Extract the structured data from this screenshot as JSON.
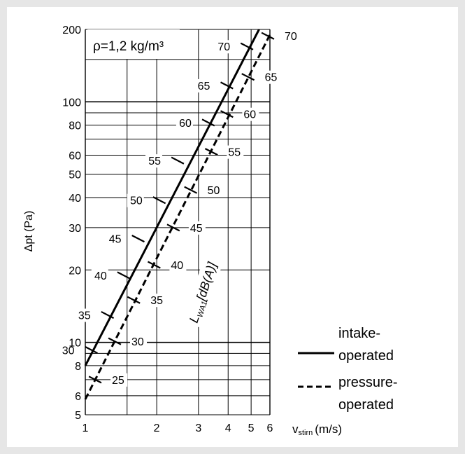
{
  "chart_data": {
    "type": "line",
    "annotation": "ρ=1,2 kg/m³",
    "xlabel": "v",
    "xlabel_sub": "stirn",
    "xlabel_unit": "(m/s)",
    "ylabel": "Δpt (Pa)",
    "scale": "log-log",
    "xlim": [
      1,
      6
    ],
    "ylim": [
      5,
      200
    ],
    "x_ticks": [
      1,
      2,
      3,
      4,
      5,
      6
    ],
    "y_ticks": [
      5,
      6,
      8,
      10,
      20,
      30,
      40,
      50,
      60,
      80,
      100,
      200
    ],
    "diag_label_main": "L",
    "diag_label_sub": "WA1",
    "diag_label_unit": "[dB(A)]",
    "series": [
      {
        "name": "intake-operated",
        "legend": [
          "intake-",
          "operated"
        ],
        "style": "solid",
        "x": [
          1,
          5.4
        ],
        "y": [
          8,
          200
        ],
        "markers": [
          {
            "label": "30",
            "x": 1.06,
            "y": 9.3
          },
          {
            "label": "35",
            "x": 1.24,
            "y": 13
          },
          {
            "label": "40",
            "x": 1.45,
            "y": 19
          },
          {
            "label": "45",
            "x": 1.67,
            "y": 27
          },
          {
            "label": "50",
            "x": 2.05,
            "y": 39
          },
          {
            "label": "55",
            "x": 2.45,
            "y": 57
          },
          {
            "label": "60",
            "x": 3.3,
            "y": 82
          },
          {
            "label": "65",
            "x": 3.95,
            "y": 117
          },
          {
            "label": "70",
            "x": 4.8,
            "y": 170
          }
        ]
      },
      {
        "name": "pressure-operated",
        "legend": [
          "pressure-",
          "operated"
        ],
        "style": "dashed",
        "x": [
          1,
          6
        ],
        "y": [
          5.8,
          190
        ],
        "markers": [
          {
            "label": "25",
            "x": 1.1,
            "y": 7
          },
          {
            "label": "30",
            "x": 1.33,
            "y": 10.1
          },
          {
            "label": "35",
            "x": 1.6,
            "y": 15
          },
          {
            "label": "40",
            "x": 1.95,
            "y": 21
          },
          {
            "label": "45",
            "x": 2.35,
            "y": 30
          },
          {
            "label": "50",
            "x": 2.78,
            "y": 43
          },
          {
            "label": "55",
            "x": 3.4,
            "y": 62
          },
          {
            "label": "60",
            "x": 3.95,
            "y": 89
          },
          {
            "label": "65",
            "x": 4.85,
            "y": 127
          },
          {
            "label": "70",
            "x": 5.88,
            "y": 188
          }
        ]
      }
    ]
  }
}
